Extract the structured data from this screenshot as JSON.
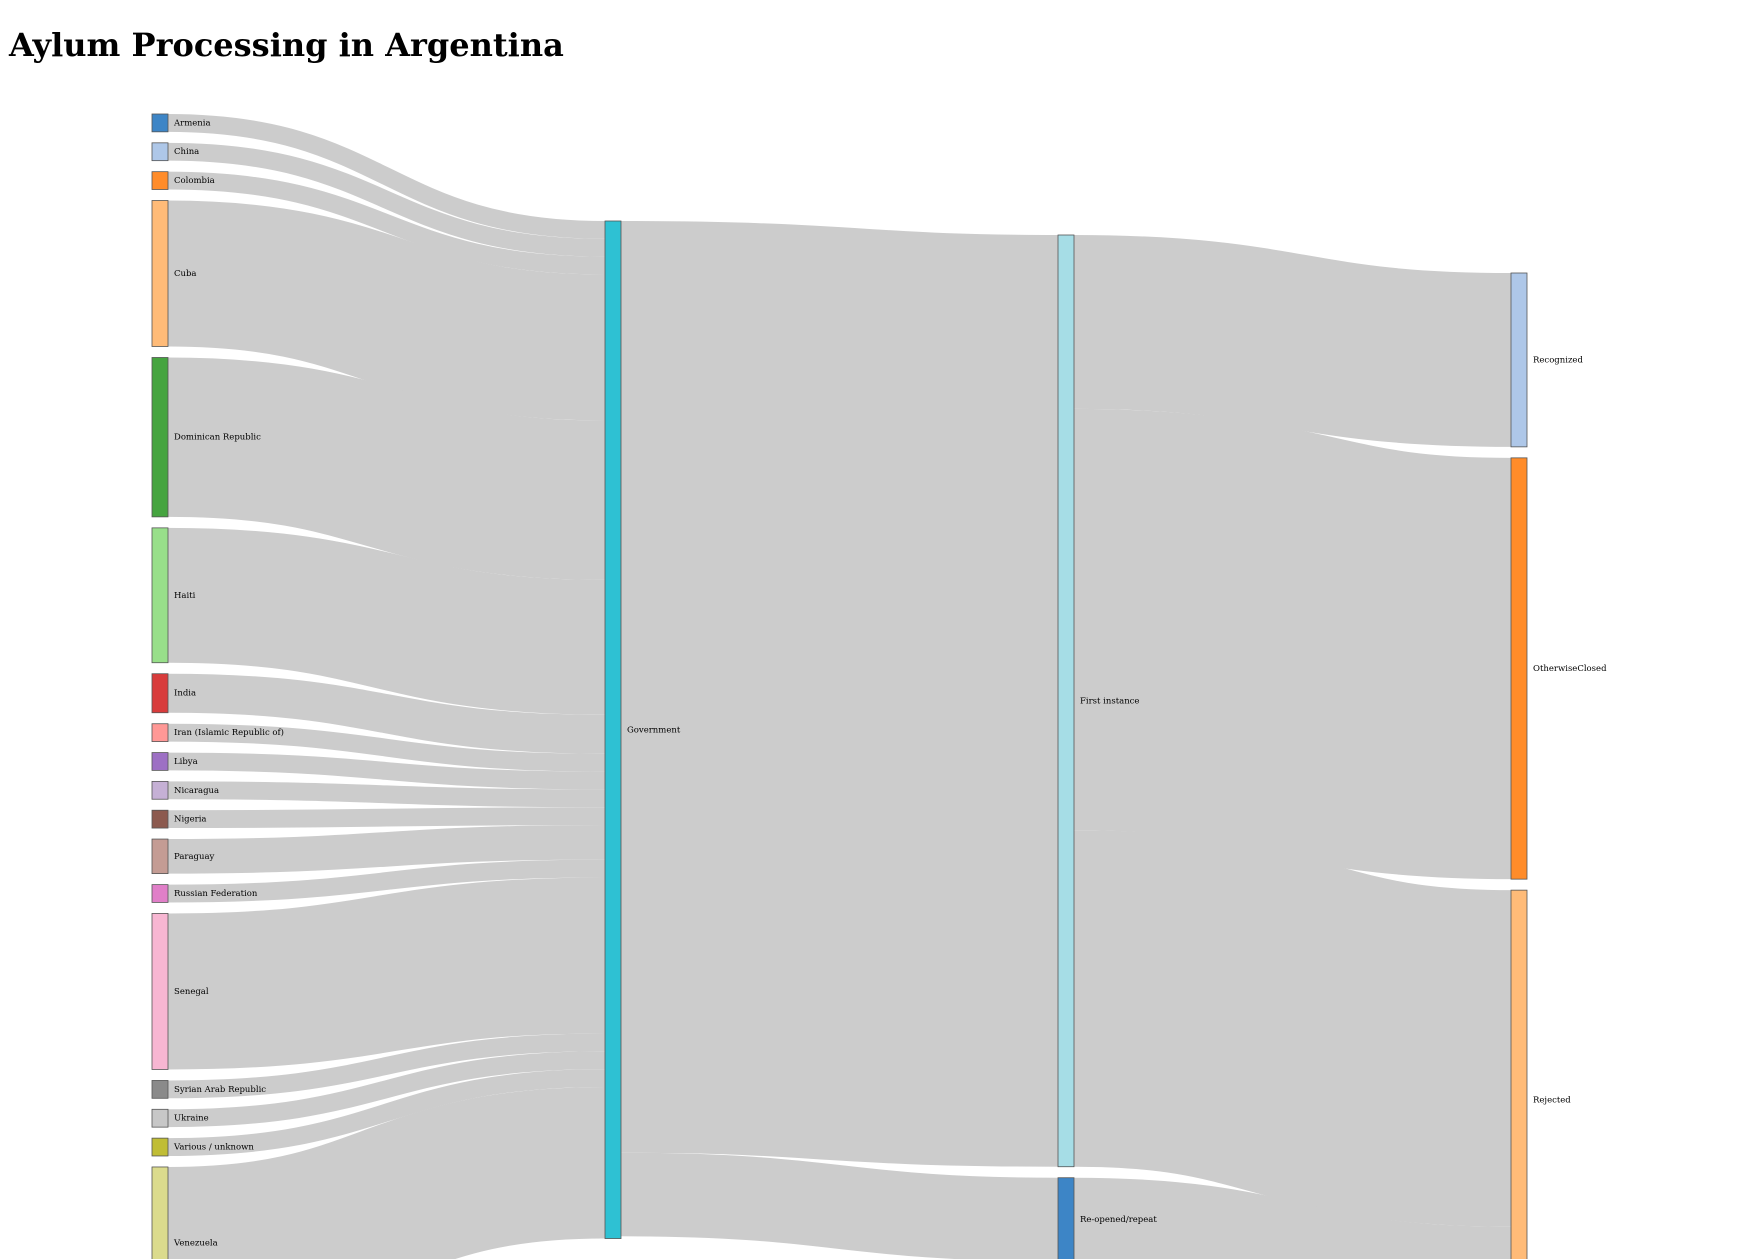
{
  "title": "Aylum Processing in Argentina",
  "chart_data": {
    "type": "sankey",
    "title": "Aylum Processing in Argentina",
    "link_color": "#cccccc",
    "node_stroke": "#555555",
    "nodes": [
      {
        "name": "Armenia",
        "color": "#3d85c6",
        "column": 0
      },
      {
        "name": "China",
        "color": "#aec7e8",
        "column": 0
      },
      {
        "name": "Colombia",
        "color": "#ff8c2a",
        "column": 0
      },
      {
        "name": "Cuba",
        "color": "#ffbb78",
        "column": 0
      },
      {
        "name": "Dominican Republic",
        "color": "#45a43f",
        "column": 0
      },
      {
        "name": "Haiti",
        "color": "#98df8a",
        "column": 0
      },
      {
        "name": "India",
        "color": "#d83c3c",
        "column": 0
      },
      {
        "name": "Iran (Islamic Republic of)",
        "color": "#ff9896",
        "column": 0
      },
      {
        "name": "Libya",
        "color": "#9d70c4",
        "column": 0
      },
      {
        "name": "Nicaragua",
        "color": "#c5b0d5",
        "column": 0
      },
      {
        "name": "Nigeria",
        "color": "#8c5a4f",
        "column": 0
      },
      {
        "name": "Paraguay",
        "color": "#c49c94",
        "column": 0
      },
      {
        "name": "Russian Federation",
        "color": "#e07fc8",
        "column": 0
      },
      {
        "name": "Senegal",
        "color": "#f7b6d2",
        "column": 0
      },
      {
        "name": "Syrian Arab Republic",
        "color": "#8a8a8a",
        "column": 0
      },
      {
        "name": "Ukraine",
        "color": "#c7c7c7",
        "column": 0
      },
      {
        "name": "Various / unknown",
        "color": "#c0bd35",
        "column": 0
      },
      {
        "name": "Venezuela",
        "color": "#dbdb8d",
        "column": 0
      },
      {
        "name": "Government",
        "color": "#2ec1d3",
        "column": 1
      },
      {
        "name": "First instance",
        "color": "#a6dde6",
        "column": 2
      },
      {
        "name": "Re-opened/repeat",
        "color": "#3d85c6",
        "column": 2
      },
      {
        "name": "Recognized",
        "color": "#aec7e8",
        "column": 3
      },
      {
        "name": "OtherwiseClosed",
        "color": "#ff8c2a",
        "column": 3
      },
      {
        "name": "Rejected",
        "color": "#ffbb78",
        "column": 3
      }
    ],
    "links": [
      {
        "source": "Armenia",
        "target": "Government",
        "value": 16
      },
      {
        "source": "China",
        "target": "Government",
        "value": 16
      },
      {
        "source": "Colombia",
        "target": "Government",
        "value": 16
      },
      {
        "source": "Cuba",
        "target": "Government",
        "value": 131
      },
      {
        "source": "Dominican Republic",
        "target": "Government",
        "value": 143
      },
      {
        "source": "Haiti",
        "target": "Government",
        "value": 121
      },
      {
        "source": "India",
        "target": "Government",
        "value": 35
      },
      {
        "source": "Iran (Islamic Republic of)",
        "target": "Government",
        "value": 16
      },
      {
        "source": "Libya",
        "target": "Government",
        "value": 16
      },
      {
        "source": "Nicaragua",
        "target": "Government",
        "value": 16
      },
      {
        "source": "Nigeria",
        "target": "Government",
        "value": 16
      },
      {
        "source": "Paraguay",
        "target": "Government",
        "value": 31
      },
      {
        "source": "Russian Federation",
        "target": "Government",
        "value": 16
      },
      {
        "source": "Senegal",
        "target": "Government",
        "value": 140
      },
      {
        "source": "Syrian Arab Republic",
        "target": "Government",
        "value": 16
      },
      {
        "source": "Ukraine",
        "target": "Government",
        "value": 16
      },
      {
        "source": "Various / unknown",
        "target": "Government",
        "value": 16
      },
      {
        "source": "Venezuela",
        "target": "Government",
        "value": 136
      },
      {
        "source": "Government",
        "target": "First instance",
        "value": 836
      },
      {
        "source": "Government",
        "target": "Re-opened/repeat",
        "value": 75
      },
      {
        "source": "First instance",
        "target": "Recognized",
        "value": 156
      },
      {
        "source": "First instance",
        "target": "OtherwiseClosed",
        "value": 378
      },
      {
        "source": "First instance",
        "target": "Rejected",
        "value": 302
      },
      {
        "source": "Re-opened/repeat",
        "target": "Rejected",
        "value": 75
      }
    ]
  }
}
